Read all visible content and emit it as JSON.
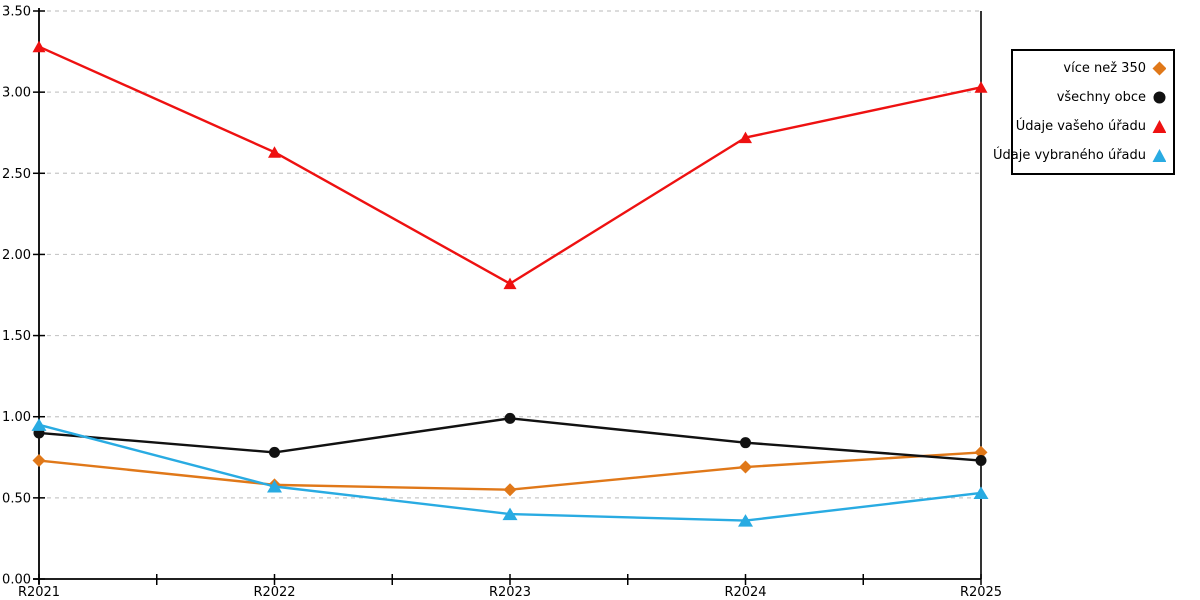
{
  "chart_data": {
    "type": "line",
    "title": "",
    "xlabel": "",
    "ylabel": "",
    "categories": [
      "R2021",
      "R2022",
      "R2023",
      "R2024",
      "R2025"
    ],
    "series": [
      {
        "name": "více než 350",
        "marker": "diamond",
        "color": "#E07819",
        "values": [
          0.73,
          0.58,
          0.55,
          0.69,
          0.78
        ]
      },
      {
        "name": "všechny obce",
        "marker": "circle",
        "color": "#111111",
        "values": [
          0.9,
          0.78,
          0.99,
          0.84,
          0.73
        ]
      },
      {
        "name": "Údaje vašeho úřadu",
        "marker": "triangle",
        "color": "#EE1111",
        "values": [
          3.28,
          2.63,
          1.82,
          2.72,
          3.03
        ]
      },
      {
        "name": "Údaje vybraného úřadu",
        "marker": "triangle",
        "color": "#29ABE2",
        "values": [
          0.95,
          0.57,
          0.4,
          0.36,
          0.53
        ]
      }
    ],
    "ylim": [
      0,
      3.5
    ],
    "ytick_step": 0.5,
    "ytick_labels": [
      "0.00",
      "0.50",
      "1.00",
      "1.50",
      "2.00",
      "2.50",
      "3.00",
      "3.50"
    ],
    "grid": "horizontal-dashed",
    "grid_color": "#C8C8C8",
    "axis_color": "#000000",
    "legend_position": "top-right-outside"
  }
}
